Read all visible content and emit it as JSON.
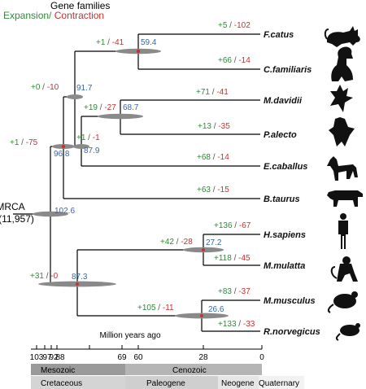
{
  "header": {
    "title": "Gene families",
    "expansion_label": "Expansion",
    "separator": "/",
    "contraction_label": " Contraction"
  },
  "root": {
    "label": "MRCA",
    "gene_families": "(11,957)"
  },
  "taxa": [
    {
      "name": "F.catus",
      "gain": "+5",
      "loss": "-102",
      "icon": "cat-icon"
    },
    {
      "name": "C.familiaris",
      "gain": "+66",
      "loss": "-14",
      "icon": "dog-icon"
    },
    {
      "name": "M.davidii",
      "gain": "+71",
      "loss": "-41",
      "icon": "bat-icon"
    },
    {
      "name": "P.alecto",
      "gain": "+13",
      "loss": "-35",
      "icon": "fruit-bat-icon"
    },
    {
      "name": "E.caballus",
      "gain": "+68",
      "loss": "-14",
      "icon": "horse-icon"
    },
    {
      "name": "B.taurus",
      "gain": "+63",
      "loss": "-15",
      "icon": "cow-icon"
    },
    {
      "name": "H.sapiens",
      "gain": "+136",
      "loss": "-67",
      "icon": "human-icon"
    },
    {
      "name": "M.mulatta",
      "gain": "+118",
      "loss": "-45",
      "icon": "monkey-icon"
    },
    {
      "name": "M.musculus",
      "gain": "+83",
      "loss": "-37",
      "icon": "mouse-icon"
    },
    {
      "name": "R.norvegicus",
      "gain": "+133",
      "loss": "-33",
      "icon": "rat-icon"
    }
  ],
  "internal_nodes": [
    {
      "id": "carnivora",
      "gain": "+1",
      "loss": "-41",
      "families": "59.4"
    },
    {
      "id": "laurasiatheria",
      "gain": "+0",
      "loss": "-10",
      "families": "91.7"
    },
    {
      "id": "chiroptera",
      "gain": "+19",
      "loss": "-27",
      "families": "68.7"
    },
    {
      "id": "scrotifera",
      "gain": "+1",
      "loss": "-1",
      "families": "87.9"
    },
    {
      "id": "laurasiatheria-base",
      "gain": "+1",
      "loss": "-75",
      "families": "96.8"
    },
    {
      "id": "boreoeutheria",
      "gain": "",
      "loss": "",
      "families": "102.6"
    },
    {
      "id": "primates",
      "gain": "+42",
      "loss": "-28",
      "families": "27.2"
    },
    {
      "id": "euarchontoglires",
      "gain": "+31",
      "loss": "-0",
      "families": "87.3"
    },
    {
      "id": "rodentia",
      "gain": "+105",
      "loss": "-11",
      "families": "26.6"
    }
  ],
  "time_axis": {
    "title": "Million years ago",
    "ticks": [
      "103",
      "97",
      "92",
      "88",
      "69",
      "60",
      "28",
      "0"
    ]
  },
  "eras": [
    {
      "name": "Mesozoic"
    },
    {
      "name": "Cenozoic"
    }
  ],
  "periods": [
    {
      "name": "Cretaceous"
    },
    {
      "name": "Paleogene"
    },
    {
      "name": "Neogene"
    },
    {
      "name": "Quaternary"
    }
  ],
  "colors": {
    "gain": "#2e8b3a",
    "loss": "#c8312f",
    "node_value": "#3a66a8",
    "era_band": "#9a9a9a",
    "period_band": "#d4d4d4",
    "neogene_band": "#e6e6e6",
    "quaternary_band": "#f2f2f2"
  }
}
